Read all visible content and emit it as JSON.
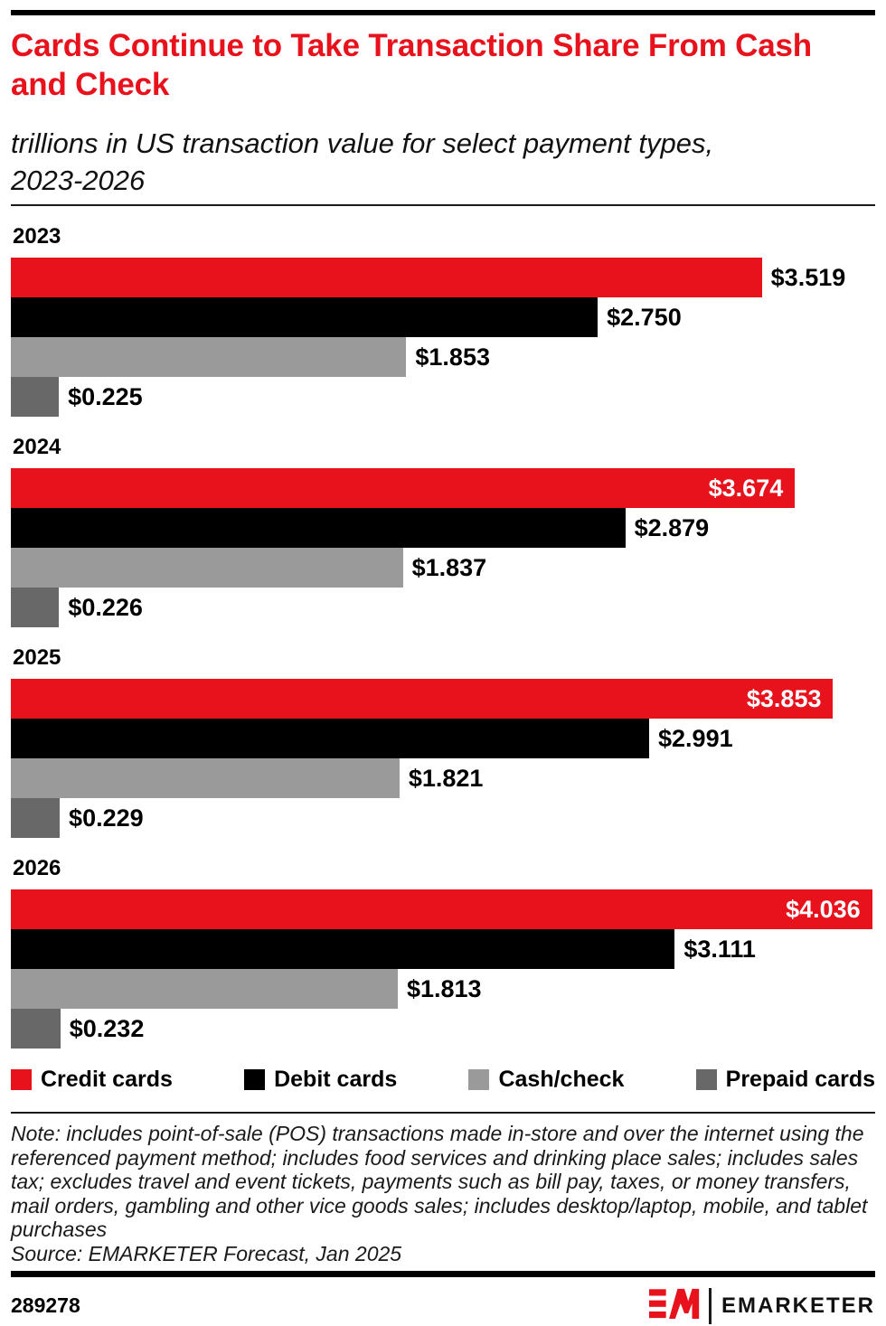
{
  "header": {
    "title": "Cards Continue to Take Transaction Share From Cash and Check",
    "subtitle": "trillions in US transaction value for select payment types, 2023-2026"
  },
  "chart_data": {
    "type": "bar",
    "orientation": "horizontal",
    "title": "Cards Continue to Take Transaction Share From Cash and Check",
    "subtitle": "trillions in US transaction value for select payment types, 2023-2026",
    "unit": "trillions of US dollars",
    "categories": [
      "2023",
      "2024",
      "2025",
      "2026"
    ],
    "series": [
      {
        "name": "Credit cards",
        "color": "#e8121c",
        "values": [
          3.519,
          3.674,
          3.853,
          4.036
        ],
        "labels": [
          "$3.519",
          "$3.674",
          "$3.853",
          "$4.036"
        ]
      },
      {
        "name": "Debit cards",
        "color": "#000000",
        "values": [
          2.75,
          2.879,
          2.991,
          3.111
        ],
        "labels": [
          "$2.750",
          "$2.879",
          "$2.991",
          "$3.111"
        ]
      },
      {
        "name": "Cash/check",
        "color": "#9a9a9a",
        "values": [
          1.853,
          1.837,
          1.821,
          1.813
        ],
        "labels": [
          "$1.853",
          "$1.837",
          "$1.821",
          "$1.813"
        ]
      },
      {
        "name": "Prepaid cards",
        "color": "#686868",
        "values": [
          0.225,
          0.226,
          0.229,
          0.232
        ],
        "labels": [
          "$0.225",
          "$0.226",
          "$0.229",
          "$0.232"
        ]
      }
    ],
    "axis_max": 4.05,
    "grid": false,
    "legend_position": "bottom",
    "value_label_inside_threshold_pct": 88
  },
  "footnote": {
    "note": "Note: includes point-of-sale (POS) transactions made in-store and over the internet using the referenced payment method; includes food services and drinking place sales; includes sales tax; excludes travel and event tickets, payments such as bill pay, taxes, or money transfers, mail orders, gambling and other vice goods sales; includes desktop/laptop, mobile, and tablet purchases",
    "source": "Source: EMARKETER Forecast, Jan 2025"
  },
  "footer": {
    "chart_id": "289278",
    "brand": "EMARKETER"
  },
  "colors": {
    "accent_red": "#e8121c",
    "bar_black": "#000000",
    "bar_gray": "#9a9a9a",
    "bar_dark_gray": "#686868"
  }
}
